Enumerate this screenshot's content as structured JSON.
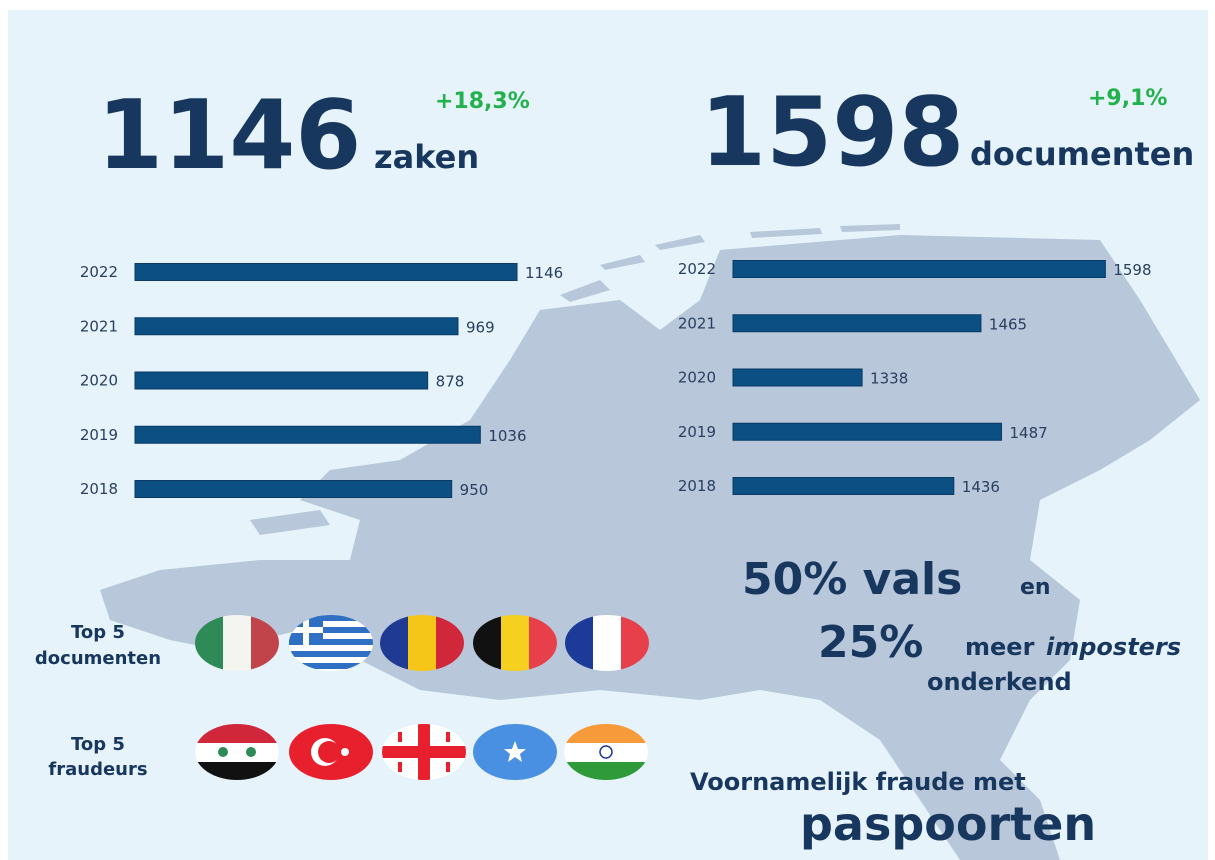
{
  "headline_cases": {
    "number": 1146,
    "unit": "zaken",
    "change": "+18,3%"
  },
  "headline_documents": {
    "number": 1598,
    "unit": "documenten",
    "change": "+9,1%"
  },
  "chart_data": [
    {
      "type": "bar",
      "orientation": "horizontal",
      "categories": [
        "2022",
        "2021",
        "2020",
        "2019",
        "2018"
      ],
      "values": [
        1146,
        969,
        878,
        1036,
        950
      ],
      "color": "#0b4f83",
      "xlim": [
        0,
        1200
      ]
    },
    {
      "type": "bar",
      "orientation": "horizontal",
      "categories": [
        "2022",
        "2021",
        "2020",
        "2019",
        "2018"
      ],
      "values": [
        1598,
        1465,
        1338,
        1487,
        1436
      ],
      "color": "#0b4f83",
      "xlim": [
        1200,
        1650
      ]
    }
  ],
  "stats": {
    "false_pct": "50% vals",
    "joiner": "en",
    "imposters_pct": "25%",
    "more": "meer",
    "imposters": "imposters",
    "recognized": "onderkend"
  },
  "top5_documents": [
    "Top 5",
    "documenten"
  ],
  "top5_fraudsters": [
    "Top 5",
    "fraudeurs"
  ],
  "footer": {
    "line1": "Voornamelijk fraude met",
    "line2": "paspoorten"
  }
}
